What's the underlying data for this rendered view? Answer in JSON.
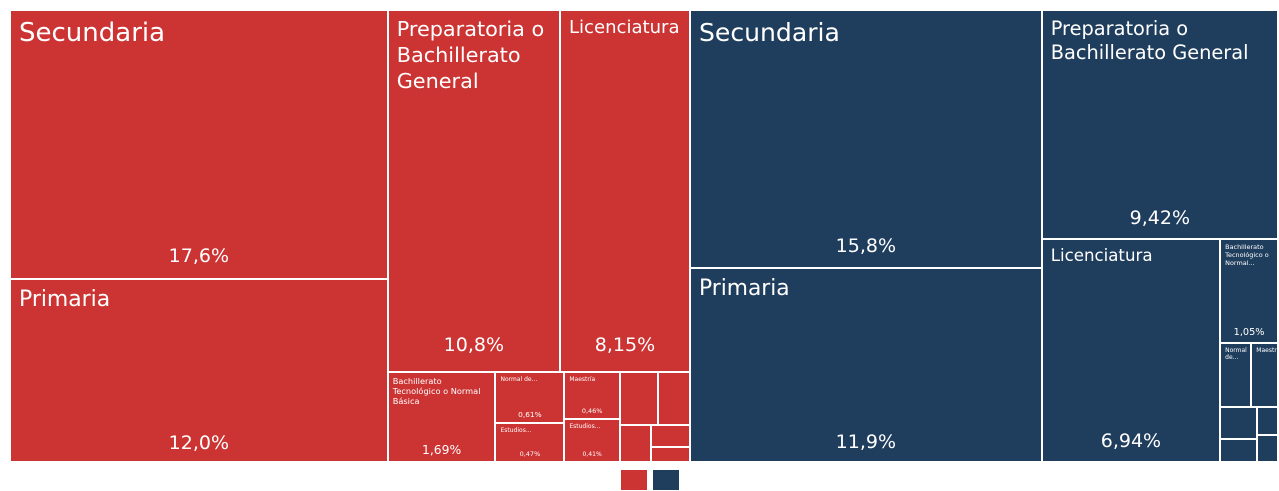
{
  "chart_data": {
    "type": "treemap",
    "series": [
      {
        "color": "#cc3333",
        "names": [
          "Secundaria",
          "Primaria",
          "Preparatoria o Bachillerato General",
          "Licenciatura",
          "Bachillerato Tecnológico o Normal Básica",
          "Normal de...",
          "Estudios...",
          "Maestría",
          "Estudios...",
          null,
          null,
          null,
          null,
          null
        ],
        "values": [
          17.6,
          12.0,
          10.8,
          8.15,
          1.69,
          0.61,
          0.47,
          0.46,
          0.41,
          0.35,
          0.3,
          0.2,
          0.15,
          0.1
        ],
        "value_labels": [
          "17,6%",
          "12,0%",
          "10,8%",
          "8,15%",
          "1,69%",
          "0,61%",
          "0,47%",
          "0,46%",
          "0,41%",
          null,
          null,
          null,
          null,
          null
        ]
      },
      {
        "color": "#1f3d5c",
        "names": [
          "Secundaria",
          "Primaria",
          "Preparatoria o Bachillerato General",
          "Licenciatura",
          "Bachillerato Tecnológico o Normal...",
          "Normal de...",
          "Maestría",
          null,
          null,
          null,
          null
        ],
        "values": [
          15.8,
          11.9,
          9.42,
          6.94,
          1.05,
          0.35,
          0.3,
          0.2,
          0.15,
          0.1,
          0.1
        ],
        "value_labels": [
          "15,8%",
          "11,9%",
          "9,42%",
          "6,94%",
          "1,05%",
          null,
          null,
          null,
          null,
          null,
          null
        ]
      }
    ]
  }
}
